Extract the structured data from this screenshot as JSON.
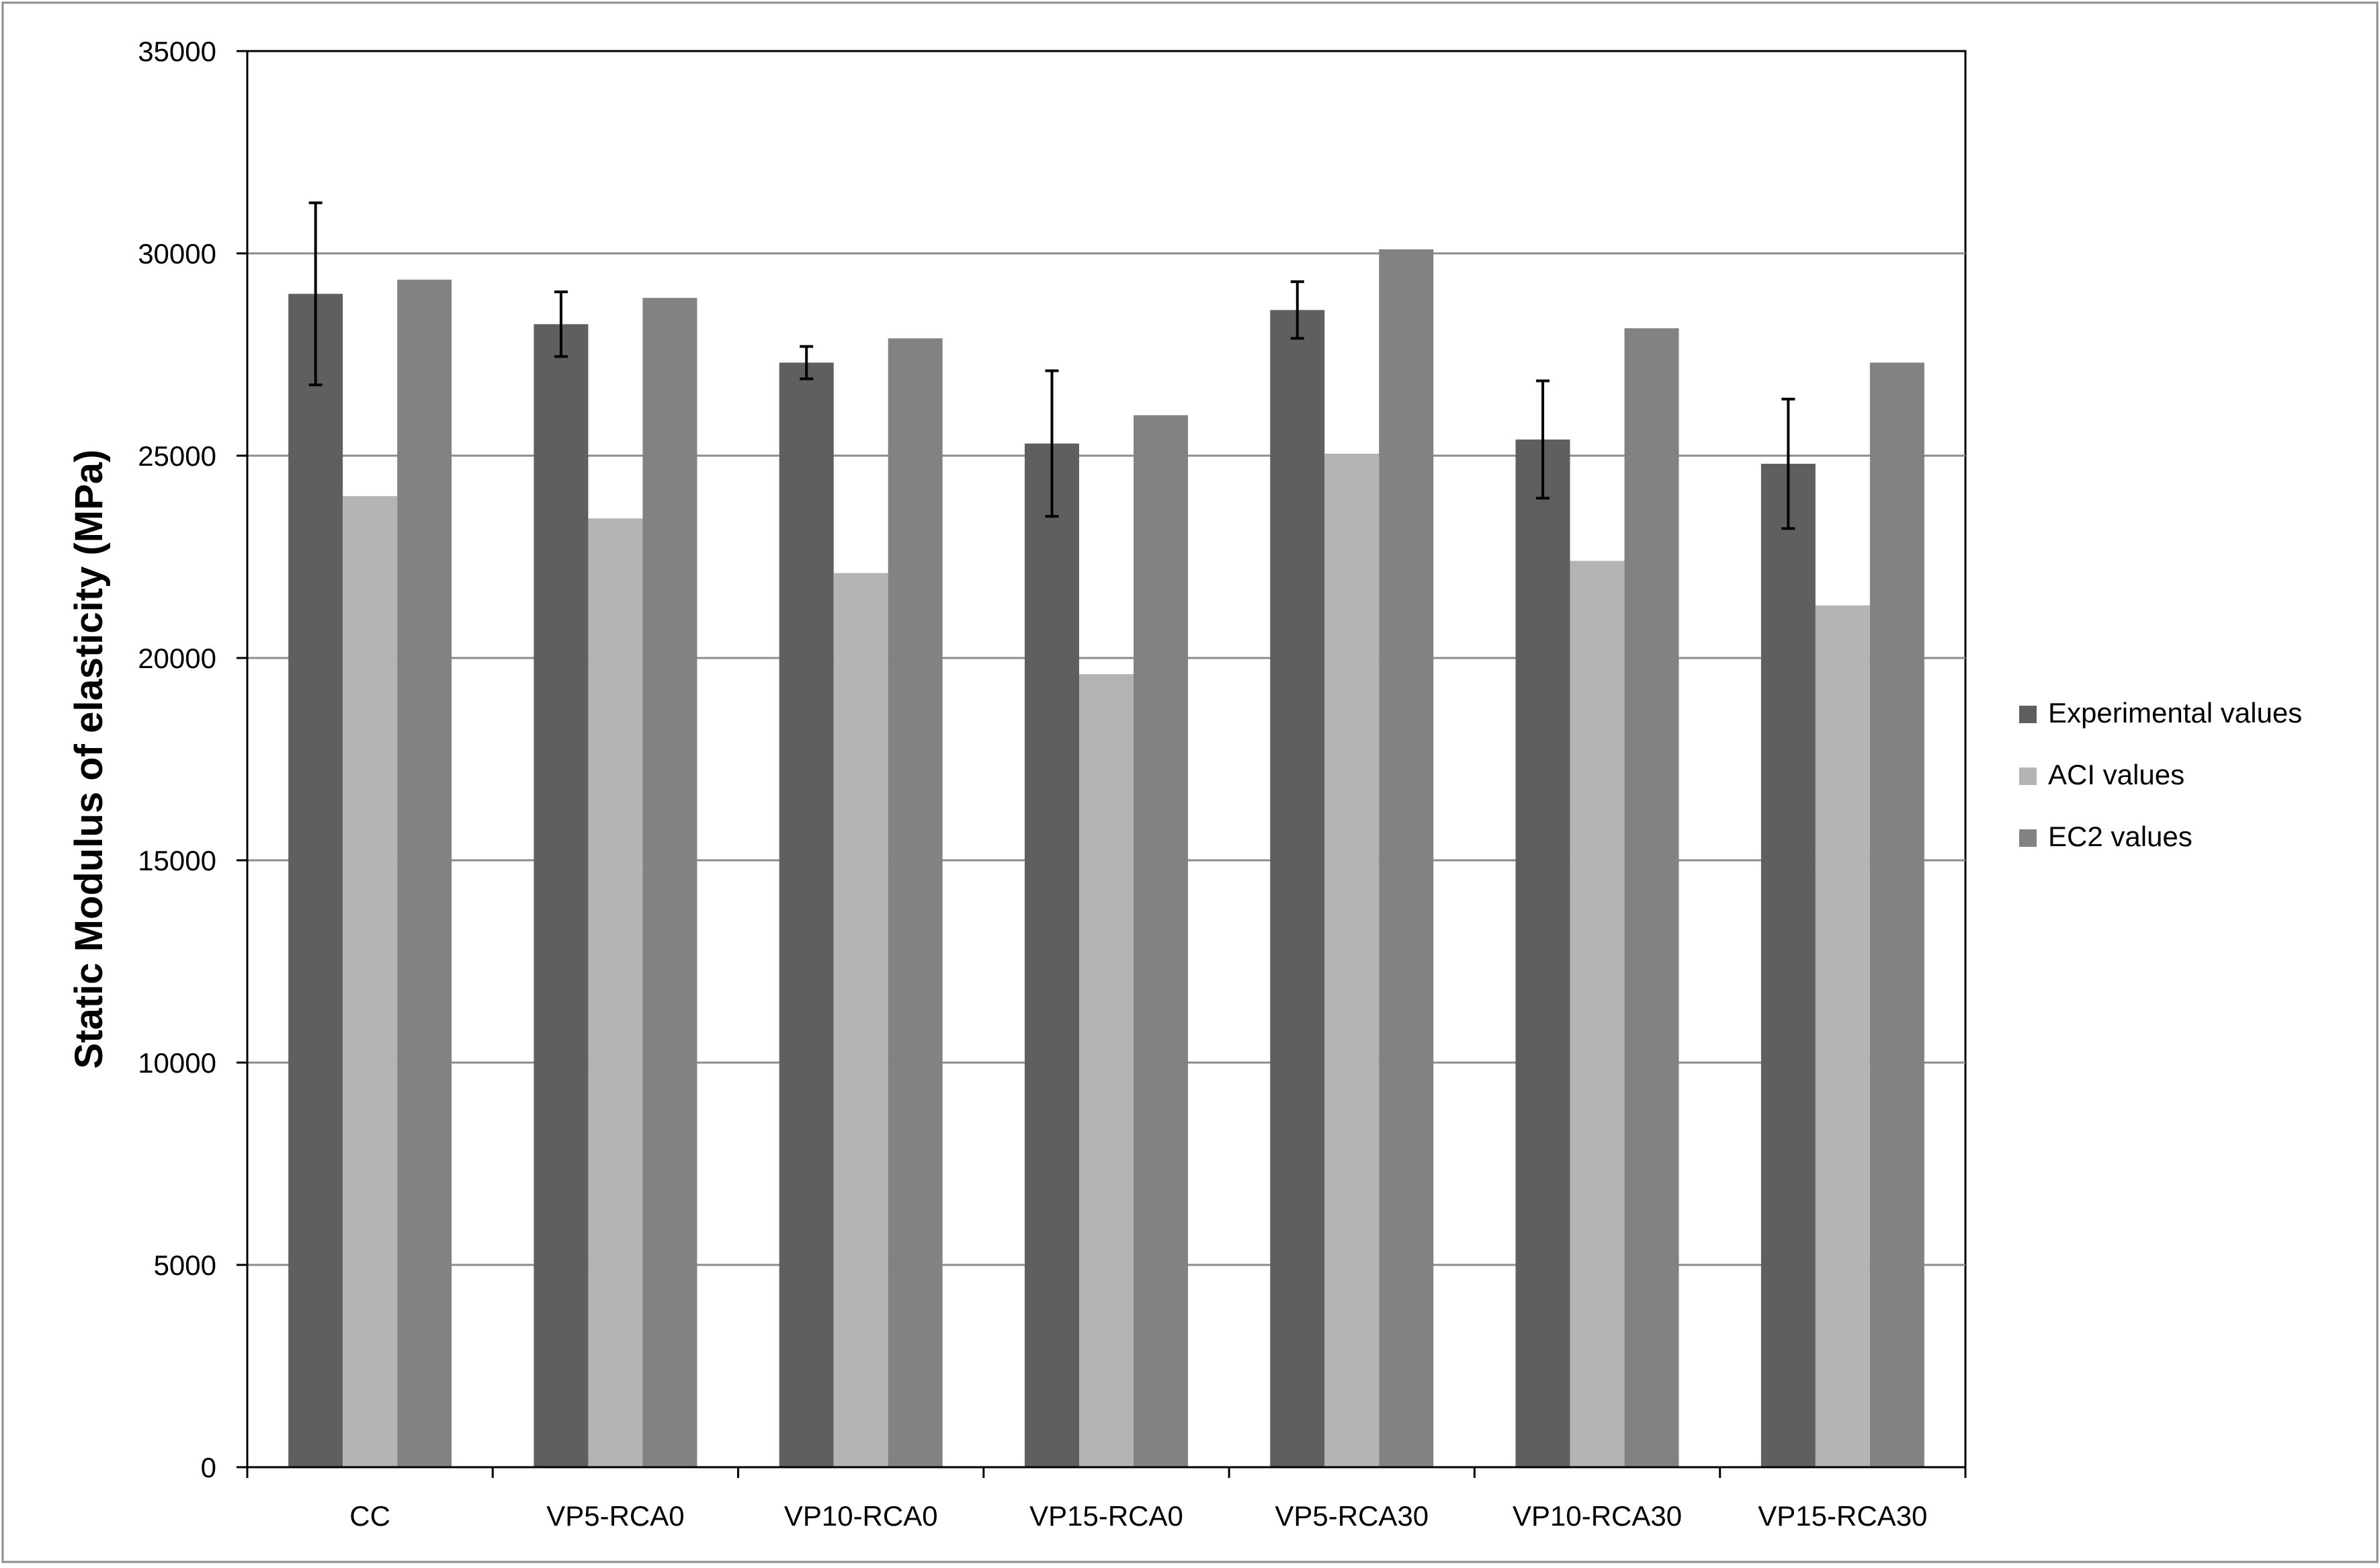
{
  "chart_data": {
    "type": "bar",
    "title": "",
    "xlabel": "",
    "ylabel": "Static Modulus of elasticity (MPa)",
    "ylim": [
      0,
      35000
    ],
    "yticks": [
      0,
      5000,
      10000,
      15000,
      20000,
      25000,
      30000,
      35000
    ],
    "grid": true,
    "legend_position": "right",
    "categories": [
      "CC",
      "VP5-RCA0",
      "VP10-RCA0",
      "VP15-RCA0",
      "VP5-RCA30",
      "VP10-RCA30",
      "VP15-RCA30"
    ],
    "series": [
      {
        "name": "Experimental values",
        "color": "#5f5f5f",
        "values": [
          29000,
          28250,
          27300,
          25300,
          28600,
          25400,
          24800
        ],
        "error": [
          2250,
          800,
          400,
          1800,
          700,
          1450,
          1600
        ]
      },
      {
        "name": "ACI values",
        "color": "#b4b4b4",
        "values": [
          24000,
          23450,
          22100,
          19600,
          25050,
          22400,
          21300
        ]
      },
      {
        "name": "EC2 values",
        "color": "#828282",
        "values": [
          29350,
          28900,
          27900,
          26000,
          30100,
          28150,
          27300
        ]
      }
    ]
  }
}
